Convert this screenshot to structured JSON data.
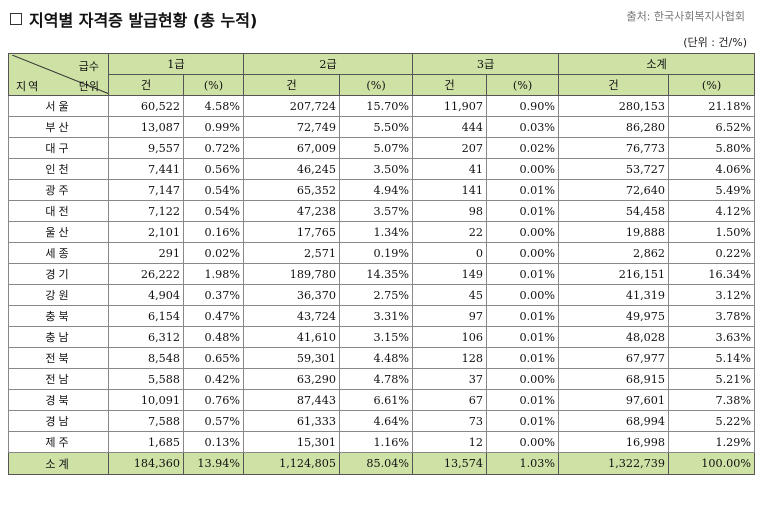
{
  "title": "지역별 자격증 발급현황 (총 누적)",
  "source": "출처: 한국사회복지사협회",
  "unit": "(단위 : 건/%)",
  "header": {
    "corner_top": "급수",
    "corner_mid": "단위",
    "corner_left": "지역",
    "groups": [
      "1급",
      "2급",
      "3급",
      "소계"
    ],
    "subcols": [
      "건",
      "(%)"
    ]
  },
  "rows": [
    {
      "region": "서울",
      "g1": "60,522",
      "p1": "4.58%",
      "g2": "207,724",
      "p2": "15.70%",
      "g3": "11,907",
      "p3": "0.90%",
      "t": "280,153",
      "pt": "21.18%"
    },
    {
      "region": "부산",
      "g1": "13,087",
      "p1": "0.99%",
      "g2": "72,749",
      "p2": "5.50%",
      "g3": "444",
      "p3": "0.03%",
      "t": "86,280",
      "pt": "6.52%"
    },
    {
      "region": "대구",
      "g1": "9,557",
      "p1": "0.72%",
      "g2": "67,009",
      "p2": "5.07%",
      "g3": "207",
      "p3": "0.02%",
      "t": "76,773",
      "pt": "5.80%"
    },
    {
      "region": "인천",
      "g1": "7,441",
      "p1": "0.56%",
      "g2": "46,245",
      "p2": "3.50%",
      "g3": "41",
      "p3": "0.00%",
      "t": "53,727",
      "pt": "4.06%"
    },
    {
      "region": "광주",
      "g1": "7,147",
      "p1": "0.54%",
      "g2": "65,352",
      "p2": "4.94%",
      "g3": "141",
      "p3": "0.01%",
      "t": "72,640",
      "pt": "5.49%"
    },
    {
      "region": "대전",
      "g1": "7,122",
      "p1": "0.54%",
      "g2": "47,238",
      "p2": "3.57%",
      "g3": "98",
      "p3": "0.01%",
      "t": "54,458",
      "pt": "4.12%"
    },
    {
      "region": "울산",
      "g1": "2,101",
      "p1": "0.16%",
      "g2": "17,765",
      "p2": "1.34%",
      "g3": "22",
      "p3": "0.00%",
      "t": "19,888",
      "pt": "1.50%"
    },
    {
      "region": "세종",
      "g1": "291",
      "p1": "0.02%",
      "g2": "2,571",
      "p2": "0.19%",
      "g3": "0",
      "p3": "0.00%",
      "t": "2,862",
      "pt": "0.22%"
    },
    {
      "region": "경기",
      "g1": "26,222",
      "p1": "1.98%",
      "g2": "189,780",
      "p2": "14.35%",
      "g3": "149",
      "p3": "0.01%",
      "t": "216,151",
      "pt": "16.34%"
    },
    {
      "region": "강원",
      "g1": "4,904",
      "p1": "0.37%",
      "g2": "36,370",
      "p2": "2.75%",
      "g3": "45",
      "p3": "0.00%",
      "t": "41,319",
      "pt": "3.12%"
    },
    {
      "region": "충북",
      "g1": "6,154",
      "p1": "0.47%",
      "g2": "43,724",
      "p2": "3.31%",
      "g3": "97",
      "p3": "0.01%",
      "t": "49,975",
      "pt": "3.78%"
    },
    {
      "region": "충남",
      "g1": "6,312",
      "p1": "0.48%",
      "g2": "41,610",
      "p2": "3.15%",
      "g3": "106",
      "p3": "0.01%",
      "t": "48,028",
      "pt": "3.63%"
    },
    {
      "region": "전북",
      "g1": "8,548",
      "p1": "0.65%",
      "g2": "59,301",
      "p2": "4.48%",
      "g3": "128",
      "p3": "0.01%",
      "t": "67,977",
      "pt": "5.14%"
    },
    {
      "region": "전남",
      "g1": "5,588",
      "p1": "0.42%",
      "g2": "63,290",
      "p2": "4.78%",
      "g3": "37",
      "p3": "0.00%",
      "t": "68,915",
      "pt": "5.21%"
    },
    {
      "region": "경북",
      "g1": "10,091",
      "p1": "0.76%",
      "g2": "87,443",
      "p2": "6.61%",
      "g3": "67",
      "p3": "0.01%",
      "t": "97,601",
      "pt": "7.38%"
    },
    {
      "region": "경남",
      "g1": "7,588",
      "p1": "0.57%",
      "g2": "61,333",
      "p2": "4.64%",
      "g3": "73",
      "p3": "0.01%",
      "t": "68,994",
      "pt": "5.22%"
    },
    {
      "region": "제주",
      "g1": "1,685",
      "p1": "0.13%",
      "g2": "15,301",
      "p2": "1.16%",
      "g3": "12",
      "p3": "0.00%",
      "t": "16,998",
      "pt": "1.29%"
    }
  ],
  "total": {
    "region": "소계",
    "g1": "184,360",
    "p1": "13.94%",
    "g2": "1,124,805",
    "p2": "85.04%",
    "g3": "13,574",
    "p3": "1.03%",
    "t": "1,322,739",
    "pt": "100.00%"
  },
  "colors": {
    "header_bg": "#cfe2a6"
  },
  "icons": {
    "title_marker": "checkbox-icon"
  }
}
